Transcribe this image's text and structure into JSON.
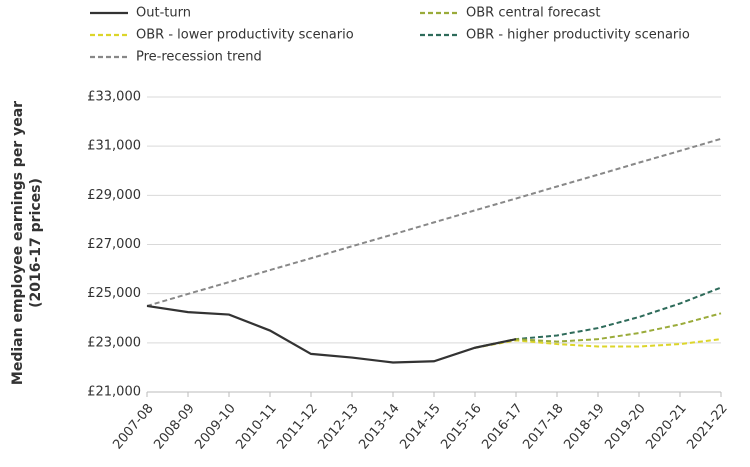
{
  "chart_data": {
    "type": "line",
    "ylabel": [
      "Median employee earnings per year",
      "(2016-17 prices)"
    ],
    "categories": [
      "2007-08",
      "2008-09",
      "2009-10",
      "2010-11",
      "2011-12",
      "2012-13",
      "2013-14",
      "2014-15",
      "2015-16",
      "2016-17",
      "2017-18",
      "2018-19",
      "2019-20",
      "2020-21",
      "2021-22"
    ],
    "series": [
      {
        "name": "Out-turn",
        "color": "#333333",
        "dashed": false,
        "values": [
          24500,
          24250,
          24150,
          23500,
          22550,
          22400,
          22200,
          22250,
          22800,
          23150,
          null,
          null,
          null,
          null,
          null
        ]
      },
      {
        "name": "OBR central forecast",
        "color": "#9aab3a",
        "dashed": true,
        "values": [
          null,
          null,
          null,
          null,
          null,
          null,
          null,
          null,
          22800,
          23150,
          23050,
          23150,
          23400,
          23750,
          24200
        ]
      },
      {
        "name": "OBR - lower productivity scenario",
        "color": "#dcd52a",
        "dashed": true,
        "values": [
          null,
          null,
          null,
          null,
          null,
          null,
          null,
          null,
          22800,
          23100,
          22950,
          22850,
          22850,
          22950,
          23150
        ]
      },
      {
        "name": "OBR - higher productivity scenario",
        "color": "#2e6b5a",
        "dashed": true,
        "values": [
          null,
          null,
          null,
          null,
          null,
          null,
          null,
          null,
          22800,
          23150,
          23300,
          23600,
          24050,
          24600,
          25250
        ]
      },
      {
        "name": "Pre-recession trend",
        "color": "#888888",
        "dashed": true,
        "values": [
          24500,
          24990,
          25470,
          25960,
          26440,
          26930,
          27410,
          27900,
          28390,
          28870,
          29360,
          29840,
          30330,
          30810,
          31300
        ]
      }
    ],
    "ylim": [
      21000,
      33000
    ],
    "yticks": [
      {
        "value": 21000,
        "label": "£21,000"
      },
      {
        "value": 23000,
        "label": "£23,000"
      },
      {
        "value": 25000,
        "label": "£25,000"
      },
      {
        "value": 27000,
        "label": "£27,000"
      },
      {
        "value": 29000,
        "label": "£29,000"
      },
      {
        "value": 31000,
        "label": "£31,000"
      },
      {
        "value": 33000,
        "label": "£33,000"
      }
    ],
    "grid": true,
    "legend": "top"
  }
}
